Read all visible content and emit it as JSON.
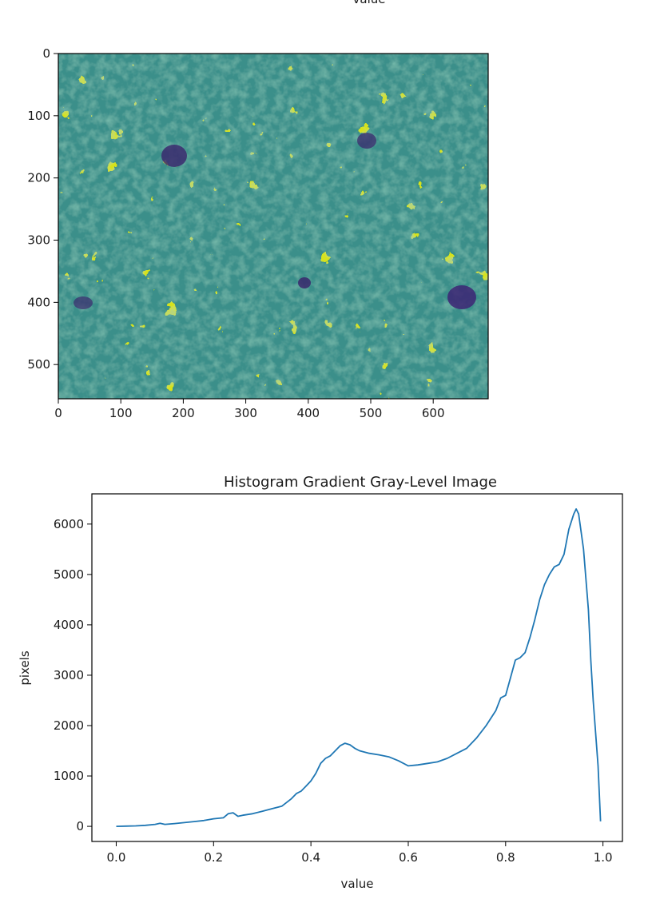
{
  "top_label": "value",
  "chart_data": [
    {
      "type": "heatmap",
      "colormap": "viridis",
      "image_size": {
        "width": 688,
        "height": 555
      },
      "xlim": [
        0,
        688
      ],
      "ylim": [
        555,
        0
      ],
      "xticks": [
        0,
        100,
        200,
        300,
        400,
        500,
        600
      ],
      "yticks": [
        0,
        100,
        200,
        300,
        400,
        500
      ],
      "title": "",
      "xlabel": "",
      "ylabel": ""
    },
    {
      "type": "line",
      "title": "Histogram Gradient Gray-Level Image",
      "xlabel": "value",
      "ylabel": "pixels",
      "xlim": [
        -0.05,
        1.04
      ],
      "ylim": [
        -300,
        6600
      ],
      "xticks": [
        "0.0",
        "0.2",
        "0.4",
        "0.6",
        "0.8",
        "1.0"
      ],
      "yticks": [
        "0",
        "1000",
        "2000",
        "3000",
        "4000",
        "5000",
        "6000"
      ],
      "grid": false,
      "line_color": "#1f77b4",
      "series": [
        {
          "x": [
            0.0,
            0.02,
            0.04,
            0.06,
            0.08,
            0.09,
            0.1,
            0.12,
            0.14,
            0.16,
            0.18,
            0.2,
            0.22,
            0.23,
            0.24,
            0.25,
            0.26,
            0.28,
            0.3,
            0.32,
            0.34,
            0.36,
            0.37,
            0.38,
            0.39,
            0.4,
            0.41,
            0.42,
            0.43,
            0.44,
            0.45,
            0.46,
            0.47,
            0.48,
            0.49,
            0.5,
            0.52,
            0.54,
            0.56,
            0.58,
            0.6,
            0.62,
            0.64,
            0.66,
            0.68,
            0.7,
            0.72,
            0.74,
            0.76,
            0.78,
            0.79,
            0.8,
            0.81,
            0.82,
            0.83,
            0.84,
            0.85,
            0.86,
            0.87,
            0.88,
            0.89,
            0.9,
            0.91,
            0.92,
            0.93,
            0.94,
            0.945,
            0.95,
            0.96,
            0.97,
            0.975,
            0.98,
            0.99,
            0.995
          ],
          "y": [
            0,
            5,
            10,
            20,
            40,
            60,
            40,
            55,
            75,
            95,
            115,
            150,
            170,
            250,
            270,
            200,
            220,
            250,
            300,
            350,
            400,
            550,
            650,
            700,
            800,
            900,
            1050,
            1250,
            1350,
            1400,
            1500,
            1600,
            1650,
            1620,
            1550,
            1500,
            1450,
            1420,
            1380,
            1300,
            1200,
            1220,
            1250,
            1280,
            1350,
            1450,
            1550,
            1750,
            2000,
            2300,
            2550,
            2600,
            2950,
            3300,
            3350,
            3450,
            3750,
            4100,
            4500,
            4800,
            5000,
            5150,
            5200,
            5400,
            5900,
            6200,
            6300,
            6200,
            5500,
            4300,
            3300,
            2500,
            1200,
            100
          ]
        }
      ]
    }
  ]
}
